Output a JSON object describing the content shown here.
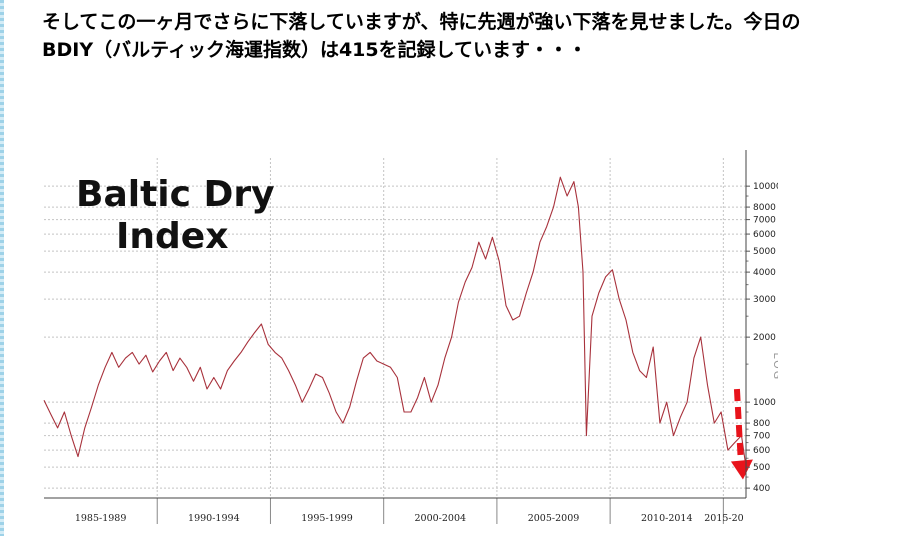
{
  "post": {
    "line1": "そしてこの一ヶ月でさらに下落していますが、特に先週が強い下落を見せました。今日の",
    "line2": "BDIY（バルティック海運指数）は415を記録しています・・・"
  },
  "chart_data": {
    "type": "line",
    "title": "Baltic Dry Index",
    "title_lines": [
      "Baltic Dry",
      "Index"
    ],
    "y_scale": "log",
    "y_axis_label": "LOG",
    "ylim": [
      360,
      13500
    ],
    "y_ticks": [
      "10000",
      "8000",
      "7000",
      "6000",
      "5000",
      "4000",
      "3000",
      "2000",
      "1000",
      "800",
      "700",
      "600",
      "500",
      "400"
    ],
    "x_tick_labels": [
      "1985-1989",
      "1990-1994",
      "1995-1999",
      "2000-2004",
      "2005-2009",
      "2010-2014",
      "2015-20"
    ],
    "grid": true,
    "annotation": "red dashed downward arrow",
    "series": [
      {
        "color": "#a8323c",
        "x": [
          1985.0,
          1985.3,
          1985.6,
          1985.9,
          1986.2,
          1986.5,
          1986.8,
          1987.1,
          1987.4,
          1987.7,
          1988.0,
          1988.3,
          1988.6,
          1988.9,
          1989.2,
          1989.5,
          1989.8,
          1990.1,
          1990.4,
          1990.7,
          1991.0,
          1991.3,
          1991.6,
          1991.9,
          1992.2,
          1992.5,
          1992.8,
          1993.1,
          1993.4,
          1993.7,
          1994.0,
          1994.3,
          1994.6,
          1994.9,
          1995.2,
          1995.5,
          1995.8,
          1996.1,
          1996.4,
          1996.7,
          1997.0,
          1997.3,
          1997.6,
          1997.9,
          1998.2,
          1998.5,
          1998.8,
          1999.1,
          1999.4,
          1999.7,
          2000.0,
          2000.3,
          2000.6,
          2000.9,
          2001.2,
          2001.5,
          2001.8,
          2002.1,
          2002.4,
          2002.7,
          2003.0,
          2003.3,
          2003.6,
          2003.9,
          2004.2,
          2004.5,
          2004.8,
          2005.1,
          2005.4,
          2005.7,
          2006.0,
          2006.3,
          2006.6,
          2006.9,
          2007.2,
          2007.5,
          2007.8,
          2008.1,
          2008.4,
          2008.6,
          2008.8,
          2008.95,
          2009.2,
          2009.5,
          2009.8,
          2010.1,
          2010.4,
          2010.7,
          2011.0,
          2011.3,
          2011.6,
          2011.9,
          2012.2,
          2012.5,
          2012.8,
          2013.1,
          2013.4,
          2013.7,
          2014.0,
          2014.3,
          2014.6,
          2014.9,
          2015.2,
          2015.5,
          2015.8,
          2016.0
        ],
        "y": [
          1020,
          880,
          760,
          900,
          700,
          560,
          760,
          950,
          1200,
          1450,
          1700,
          1450,
          1600,
          1700,
          1500,
          1650,
          1380,
          1550,
          1700,
          1400,
          1600,
          1450,
          1250,
          1450,
          1150,
          1300,
          1150,
          1400,
          1550,
          1700,
          1900,
          2100,
          2300,
          1850,
          1700,
          1600,
          1400,
          1200,
          1000,
          1150,
          1350,
          1300,
          1100,
          900,
          800,
          950,
          1250,
          1600,
          1700,
          1550,
          1500,
          1450,
          1300,
          900,
          900,
          1050,
          1300,
          1000,
          1200,
          1600,
          2000,
          2900,
          3600,
          4200,
          5500,
          4600,
          5800,
          4500,
          2800,
          2400,
          2500,
          3200,
          4000,
          5500,
          6500,
          8000,
          11000,
          9000,
          10500,
          8000,
          4000,
          700,
          2500,
          3200,
          3800,
          4100,
          3000,
          2400,
          1700,
          1400,
          1300,
          1800,
          800,
          1000,
          700,
          850,
          1000,
          1600,
          2000,
          1200,
          800,
          900,
          600,
          650,
          700,
          500
        ]
      }
    ]
  }
}
